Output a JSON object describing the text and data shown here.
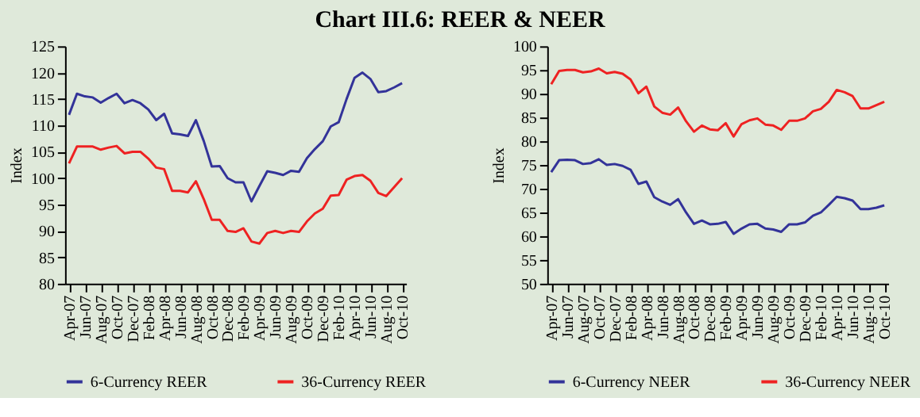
{
  "chart_data": [
    {
      "type": "line",
      "title": "Chart III.6: REER  & NEER",
      "ylabel": "Index",
      "categories": [
        "Apr-07",
        null,
        "Jun-07",
        null,
        "Aug-07",
        null,
        "Oct-07",
        null,
        "Dec-07",
        null,
        "Feb-08",
        null,
        "Apr-08",
        null,
        "Jun-08",
        null,
        "Aug-08",
        null,
        "Oct-08",
        null,
        "Dec-08",
        null,
        "Feb-09",
        null,
        "Apr-09",
        null,
        "Jun-09",
        null,
        "Aug-09",
        null,
        "Oct-09",
        null,
        "Dec-09",
        null,
        "Feb-10",
        null,
        "Apr-10",
        null,
        "Jun-10",
        null,
        "Aug-10",
        null,
        "Oct-10"
      ],
      "ylim": [
        80,
        125
      ],
      "yticks": [
        80,
        85,
        90,
        95,
        100,
        105,
        110,
        115,
        120,
        125
      ],
      "grid": false,
      "legend": "bottom",
      "marker": "none",
      "line_style": "solid",
      "series": [
        {
          "name": "6-Currency REER",
          "color": "#333399",
          "values": [
            112,
            116,
            115.5,
            115.3,
            114.3,
            115.2,
            116,
            114.2,
            114.8,
            114.2,
            113,
            111,
            112.2,
            108.5,
            108.3,
            108,
            111,
            107,
            102.2,
            102.3,
            100,
            99.2,
            99.2,
            95.6,
            98.5,
            101.3,
            101,
            100.6,
            101.4,
            101.2,
            103.8,
            105.5,
            107,
            109.8,
            110.6,
            115,
            119,
            120,
            118.8,
            116.3,
            116.5,
            117.2,
            118
          ]
        },
        {
          "name": "36-Currency REER",
          "color": "#ee2222",
          "values": [
            102.8,
            106,
            106,
            106,
            105.4,
            105.8,
            106.1,
            104.7,
            105,
            105,
            103.7,
            102,
            101.7,
            97.6,
            97.6,
            97.3,
            99.4,
            96,
            92.1,
            92.1,
            90,
            89.8,
            90.5,
            88,
            87.6,
            89.6,
            90,
            89.6,
            90,
            89.8,
            91.8,
            93.3,
            94.2,
            96.7,
            96.8,
            99.7,
            100.4,
            100.6,
            99.5,
            97.2,
            96.6,
            98.3,
            100
          ]
        }
      ]
    },
    {
      "type": "line",
      "ylabel": "Index",
      "categories": [
        "Apr-07",
        null,
        "Jun-07",
        null,
        "Aug-07",
        null,
        "Oct-07",
        null,
        "Dec-07",
        null,
        "Feb-08",
        null,
        "Apr-08",
        null,
        "Jun-08",
        null,
        "Aug-08",
        null,
        "Oct-08",
        null,
        "Dec-08",
        null,
        "Feb-09",
        null,
        "Apr-09",
        null,
        "Jun-09",
        null,
        "Aug-09",
        null,
        "Oct-09",
        null,
        "Dec-09",
        null,
        "Feb-10",
        null,
        "Apr-10",
        null,
        "Jun-10",
        null,
        "Aug-10",
        null,
        "Oct-10"
      ],
      "ylim": [
        50,
        100
      ],
      "yticks": [
        50,
        55,
        60,
        65,
        70,
        75,
        80,
        85,
        90,
        95,
        100
      ],
      "grid": false,
      "legend": "bottom",
      "marker": "none",
      "line_style": "solid",
      "series": [
        {
          "name": "6-Currency NEER",
          "color": "#333399",
          "values": [
            73.5,
            76,
            76.1,
            76,
            75.2,
            75.4,
            76.2,
            75,
            75.2,
            74.8,
            74,
            71,
            71.5,
            68.2,
            67.3,
            66.6,
            67.8,
            65,
            62.6,
            63.3,
            62.5,
            62.6,
            63,
            60.5,
            61.6,
            62.5,
            62.6,
            61.6,
            61.4,
            60.9,
            62.5,
            62.5,
            62.9,
            64.3,
            65,
            66.6,
            68.3,
            68,
            67.5,
            65.7,
            65.7,
            66,
            66.5
          ]
        },
        {
          "name": "36-Currency NEER",
          "color": "#ee2222",
          "values": [
            92,
            94.8,
            95,
            95,
            94.5,
            94.7,
            95.3,
            94.3,
            94.6,
            94.2,
            93,
            90.1,
            91.5,
            87.3,
            86,
            85.6,
            87.1,
            84.2,
            82,
            83.3,
            82.5,
            82.3,
            83.8,
            81,
            83.6,
            84.4,
            84.8,
            83.5,
            83.3,
            82.4,
            84.3,
            84.3,
            84.8,
            86.3,
            86.8,
            88.3,
            90.8,
            90.3,
            89.5,
            86.9,
            86.9,
            87.6,
            88.3
          ]
        }
      ]
    }
  ]
}
